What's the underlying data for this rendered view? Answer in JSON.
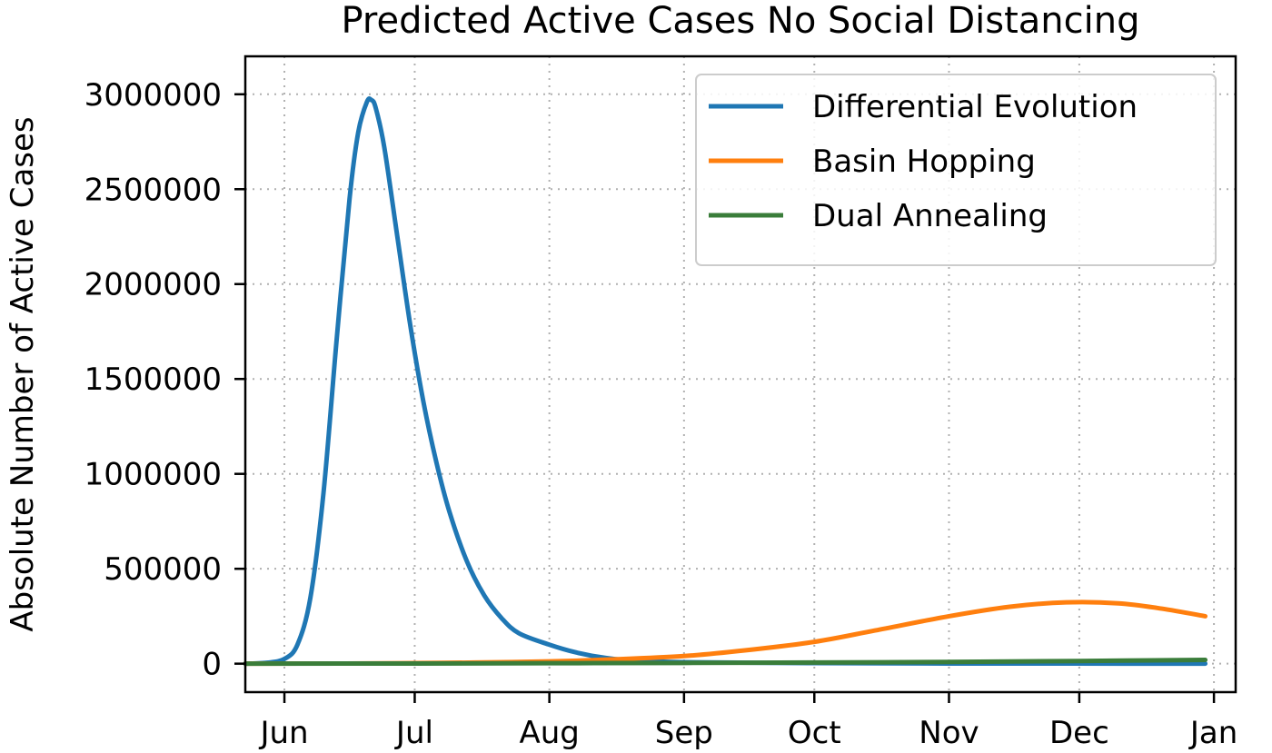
{
  "chart_data": {
    "type": "line",
    "title": "Predicted Active Cases No Social Distancing",
    "xlabel": "",
    "ylabel": "Absolute Number of Active Cases",
    "x_axis": "date",
    "xlim": [
      "2020-05-23",
      "2021-01-06"
    ],
    "ylim": [
      -150000,
      3200000
    ],
    "x_ticks": [
      {
        "date": "2020-06-01",
        "label": "Jun"
      },
      {
        "date": "2020-07-01",
        "label": "Jul"
      },
      {
        "date": "2020-08-01",
        "label": "Aug"
      },
      {
        "date": "2020-09-01",
        "label": "Sep"
      },
      {
        "date": "2020-10-01",
        "label": "Oct"
      },
      {
        "date": "2020-11-01",
        "label": "Nov"
      },
      {
        "date": "2020-12-01",
        "label": "Dec"
      },
      {
        "date": "2021-01-01",
        "label": "Jan"
      }
    ],
    "y_ticks": [
      0,
      500000,
      1000000,
      1500000,
      2000000,
      2500000,
      3000000
    ],
    "y_tick_labels": [
      "0",
      "500000",
      "1000000",
      "1500000",
      "2000000",
      "2500000",
      "3000000"
    ],
    "grid": true,
    "legend": "top-right",
    "series": [
      {
        "name": "Differential Evolution",
        "color": "#1f77b4",
        "points": [
          [
            "2020-05-23",
            0
          ],
          [
            "2020-05-28",
            5000
          ],
          [
            "2020-06-01",
            25000
          ],
          [
            "2020-06-04",
            100000
          ],
          [
            "2020-06-07",
            350000
          ],
          [
            "2020-06-10",
            900000
          ],
          [
            "2020-06-13",
            1700000
          ],
          [
            "2020-06-16",
            2450000
          ],
          [
            "2020-06-18",
            2800000
          ],
          [
            "2020-06-20",
            2960000
          ],
          [
            "2020-06-21",
            2970000
          ],
          [
            "2020-06-22",
            2930000
          ],
          [
            "2020-06-24",
            2720000
          ],
          [
            "2020-06-27",
            2250000
          ],
          [
            "2020-06-30",
            1780000
          ],
          [
            "2020-07-03",
            1380000
          ],
          [
            "2020-07-06",
            1060000
          ],
          [
            "2020-07-09",
            800000
          ],
          [
            "2020-07-13",
            540000
          ],
          [
            "2020-07-17",
            360000
          ],
          [
            "2020-07-21",
            240000
          ],
          [
            "2020-07-25",
            160000
          ],
          [
            "2020-08-01",
            100000
          ],
          [
            "2020-08-07",
            60000
          ],
          [
            "2020-08-14",
            30000
          ],
          [
            "2020-08-21",
            15000
          ],
          [
            "2020-09-01",
            8000
          ],
          [
            "2020-10-01",
            3000
          ],
          [
            "2020-11-01",
            1000
          ],
          [
            "2020-12-01",
            500
          ],
          [
            "2020-12-30",
            300
          ]
        ]
      },
      {
        "name": "Basin Hopping",
        "color": "#ff7f0e",
        "points": [
          [
            "2020-05-23",
            0
          ],
          [
            "2020-06-15",
            1000
          ],
          [
            "2020-07-01",
            3000
          ],
          [
            "2020-07-15",
            6000
          ],
          [
            "2020-08-01",
            12000
          ],
          [
            "2020-08-15",
            22000
          ],
          [
            "2020-09-01",
            40000
          ],
          [
            "2020-09-15",
            70000
          ],
          [
            "2020-10-01",
            115000
          ],
          [
            "2020-10-15",
            175000
          ],
          [
            "2020-11-01",
            250000
          ],
          [
            "2020-11-15",
            300000
          ],
          [
            "2020-11-28",
            323000
          ],
          [
            "2020-12-10",
            318000
          ],
          [
            "2020-12-20",
            290000
          ],
          [
            "2020-12-30",
            250000
          ]
        ]
      },
      {
        "name": "Dual Annealing",
        "color": "#3a7d3a",
        "points": [
          [
            "2020-05-23",
            0
          ],
          [
            "2020-07-01",
            1000
          ],
          [
            "2020-08-01",
            2500
          ],
          [
            "2020-09-01",
            4000
          ],
          [
            "2020-10-01",
            6000
          ],
          [
            "2020-11-01",
            9000
          ],
          [
            "2020-12-01",
            14000
          ],
          [
            "2020-12-30",
            20000
          ]
        ]
      }
    ]
  }
}
